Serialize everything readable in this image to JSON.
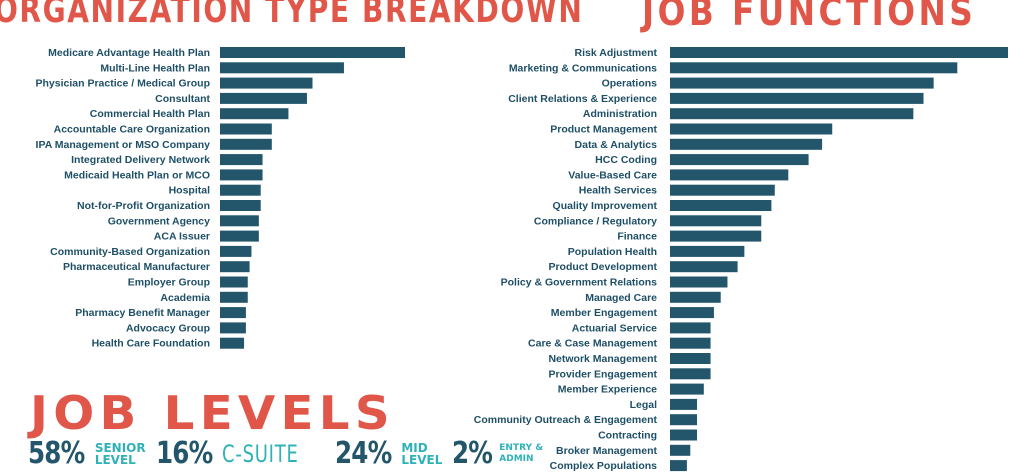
{
  "chart_data": [
    {
      "type": "bar",
      "orientation": "horizontal",
      "title": "ORGANIZATION TYPE BREAKDOWN",
      "categories": [
        "Medicare Advantage Health Plan",
        "Multi-Line Health Plan",
        "Physician Practice / Medical Group",
        "Consultant",
        "Commercial Health Plan",
        "Accountable Care Organization",
        "IPA Management or MSO Company",
        "Integrated Delivery Network",
        "Medicaid Health Plan or MCO",
        "Hospital",
        "Not-for-Profit Organization",
        "Government Agency",
        "ACA Issuer",
        "Community-Based Organization",
        "Pharmaceutical Manufacturer",
        "Employer Group",
        "Academia",
        "Pharmacy Benefit Manager",
        "Advocacy Group",
        "Health Care Foundation"
      ],
      "values": [
        100,
        67,
        50,
        47,
        37,
        28,
        28,
        23,
        23,
        22,
        22,
        21,
        21,
        17,
        16,
        15,
        15,
        14,
        14,
        13
      ],
      "xlim": [
        0,
        100
      ],
      "grid": false,
      "bar_color": "#23566b"
    },
    {
      "type": "bar",
      "orientation": "horizontal",
      "title": "JOB FUNCTIONS",
      "categories": [
        "Risk Adjustment",
        "Marketing & Communications",
        "Operations",
        "Client Relations & Experience",
        "Administration",
        "Product Management",
        "Data & Analytics",
        "HCC Coding",
        "Value-Based Care",
        "Health Services",
        "Quality Improvement",
        "Compliance / Regulatory",
        "Finance",
        "Population Health",
        "Product Development",
        "Policy & Government Relations",
        "Managed Care",
        "Member Engagement",
        "Actuarial Service",
        "Care & Case Management",
        "Network Management",
        "Provider Engagement",
        "Member Experience",
        "Legal",
        "Community Outreach & Engagement",
        "Contracting",
        "Broker Management",
        "Complex Populations"
      ],
      "values": [
        100,
        85,
        78,
        75,
        72,
        48,
        45,
        41,
        35,
        31,
        30,
        27,
        27,
        22,
        20,
        17,
        15,
        13,
        12,
        12,
        12,
        12,
        10,
        8,
        8,
        8,
        6,
        5
      ],
      "xlim": [
        0,
        100
      ],
      "grid": false,
      "bar_color": "#23566b"
    }
  ],
  "levels": {
    "title": "JOB LEVELS",
    "items": [
      {
        "pct": "58%",
        "label": [
          "SENIOR",
          "LEVEL"
        ],
        "style": "stack"
      },
      {
        "pct": "16%",
        "label": [
          "C-SUITE"
        ],
        "style": "big"
      },
      {
        "pct": "24%",
        "label": [
          "MID",
          "LEVEL"
        ],
        "style": "stack"
      },
      {
        "pct": "2%",
        "label": [
          "ENTRY &",
          "ADMIN"
        ],
        "style": "small"
      }
    ]
  },
  "colors": {
    "title": "#e0574a",
    "bar": "#23566b",
    "accent": "#2fb1b8"
  }
}
